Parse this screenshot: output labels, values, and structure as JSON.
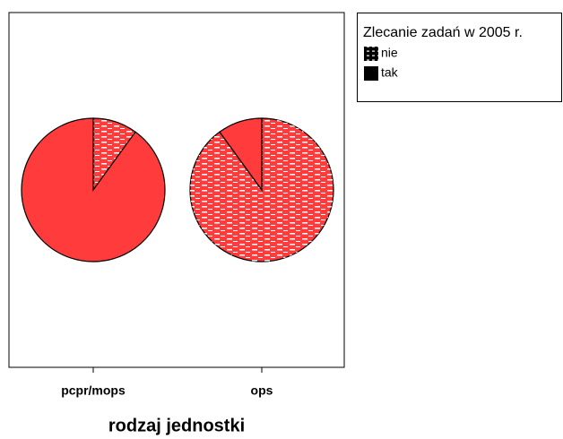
{
  "chart_data": {
    "type": "pie",
    "categories": [
      "pcpr/mops",
      "ops"
    ],
    "series": [
      {
        "name": "nie",
        "color": "#ff3b3b",
        "hatched": true,
        "values": [
          10,
          90
        ]
      },
      {
        "name": "tak",
        "color": "#ff3b3b",
        "hatched": false,
        "values": [
          90,
          10
        ]
      }
    ],
    "legend_title": "Zlecanie zadań w 2005 r.",
    "x_label": "rodzaj jednostki"
  }
}
